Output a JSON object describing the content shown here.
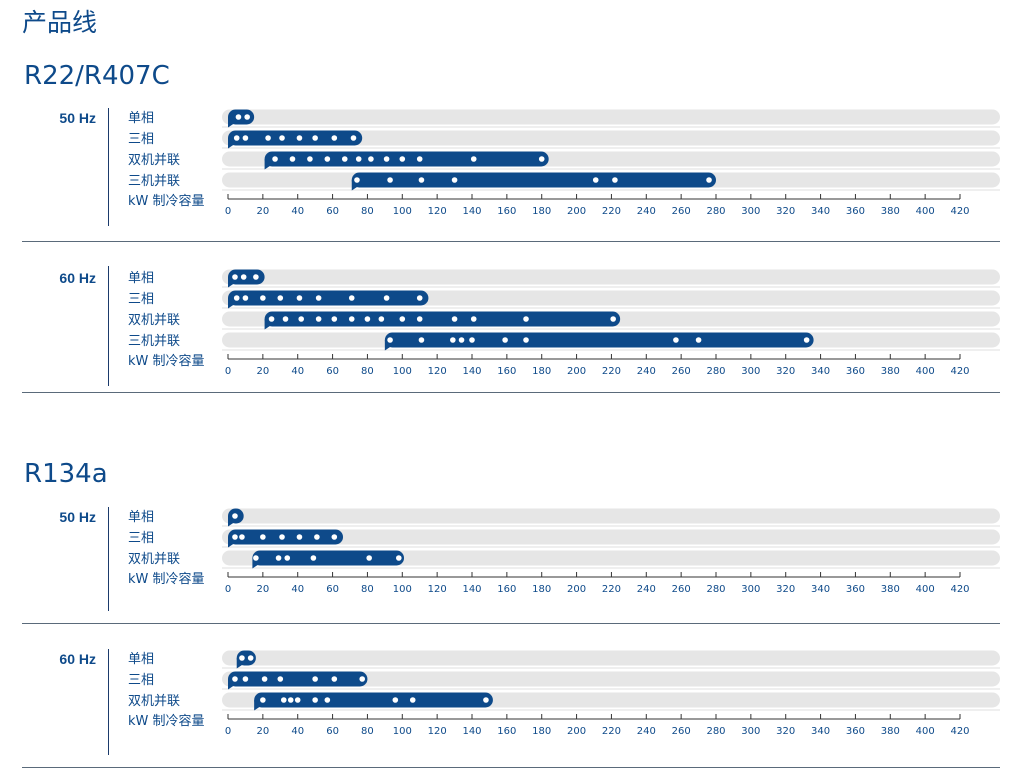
{
  "page_title": "产品线",
  "refrigerants": [
    {
      "name": "R22/R407C"
    },
    {
      "name": "R134a"
    }
  ],
  "colors": {
    "bar": "#0e4a8a",
    "track": "#e6e6e6",
    "dot": "#ffffff",
    "axis": "#333333",
    "text": "#0e4a8a"
  },
  "chart_data": [
    {
      "type": "range-bar",
      "refrigerant": "R22/R407C",
      "frequency": "50 Hz",
      "xlabel": "kW 制冷容量",
      "xlim": [
        0,
        420
      ],
      "x_ticks": [
        0,
        20,
        40,
        60,
        80,
        100,
        120,
        140,
        160,
        180,
        200,
        220,
        240,
        260,
        280,
        300,
        320,
        340,
        360,
        380,
        400,
        420
      ],
      "series": [
        {
          "name": "单相",
          "start": 0,
          "end": 15,
          "points": [
            6,
            11
          ]
        },
        {
          "name": "三相",
          "start": 0,
          "end": 77,
          "points": [
            5,
            10,
            23,
            31,
            41,
            50,
            61,
            72
          ]
        },
        {
          "name": "双机并联",
          "start": 21,
          "end": 184,
          "points": [
            27,
            37,
            47,
            57,
            67,
            75,
            82,
            91,
            100,
            110,
            141,
            180
          ]
        },
        {
          "name": "三机并联",
          "start": 71,
          "end": 280,
          "points": [
            74,
            93,
            111,
            130,
            211,
            222,
            276
          ]
        }
      ]
    },
    {
      "type": "range-bar",
      "refrigerant": "R22/R407C",
      "frequency": "60 Hz",
      "xlabel": "kW 制冷容量",
      "xlim": [
        0,
        420
      ],
      "x_ticks": [
        0,
        20,
        40,
        60,
        80,
        100,
        120,
        140,
        160,
        180,
        200,
        220,
        240,
        260,
        280,
        300,
        320,
        340,
        360,
        380,
        400,
        420
      ],
      "series": [
        {
          "name": "单相",
          "start": 0,
          "end": 21,
          "points": [
            4,
            9,
            16
          ]
        },
        {
          "name": "三相",
          "start": 0,
          "end": 115,
          "points": [
            5,
            10,
            20,
            30,
            41,
            52,
            71,
            91,
            110
          ]
        },
        {
          "name": "双机并联",
          "start": 21,
          "end": 225,
          "points": [
            25,
            33,
            42,
            52,
            61,
            71,
            80,
            88,
            100,
            110,
            130,
            141,
            171,
            221
          ]
        },
        {
          "name": "三机并联",
          "start": 90,
          "end": 336,
          "points": [
            93,
            111,
            129,
            134,
            140,
            159,
            171,
            257,
            270,
            332
          ]
        }
      ]
    },
    {
      "type": "range-bar",
      "refrigerant": "R134a",
      "frequency": "50 Hz",
      "xlabel": "kW 制冷容量",
      "xlim": [
        0,
        420
      ],
      "x_ticks": [
        0,
        20,
        40,
        60,
        80,
        100,
        120,
        140,
        160,
        180,
        200,
        220,
        240,
        260,
        280,
        300,
        320,
        340,
        360,
        380,
        400,
        420
      ],
      "series": [
        {
          "name": "单相",
          "start": 0,
          "end": 9,
          "points": [
            4
          ]
        },
        {
          "name": "三相",
          "start": 0,
          "end": 66,
          "points": [
            4,
            8,
            20,
            31,
            41,
            51,
            61
          ]
        },
        {
          "name": "双机并联",
          "start": 14,
          "end": 101,
          "points": [
            16,
            29,
            34,
            49,
            81,
            98
          ]
        }
      ]
    },
    {
      "type": "range-bar",
      "refrigerant": "R134a",
      "frequency": "60 Hz",
      "xlabel": "kW 制冷容量",
      "xlim": [
        0,
        420
      ],
      "x_ticks": [
        0,
        20,
        40,
        60,
        80,
        100,
        120,
        140,
        160,
        180,
        200,
        220,
        240,
        260,
        280,
        300,
        320,
        340,
        360,
        380,
        400,
        420
      ],
      "series": [
        {
          "name": "单相",
          "start": 5,
          "end": 16,
          "points": [
            8,
            13
          ]
        },
        {
          "name": "三相",
          "start": 0,
          "end": 80,
          "points": [
            4,
            10,
            21,
            30,
            50,
            61,
            77
          ]
        },
        {
          "name": "双机并联",
          "start": 15,
          "end": 152,
          "points": [
            20,
            32,
            36,
            40,
            50,
            57,
            96,
            106,
            148
          ]
        }
      ]
    }
  ]
}
